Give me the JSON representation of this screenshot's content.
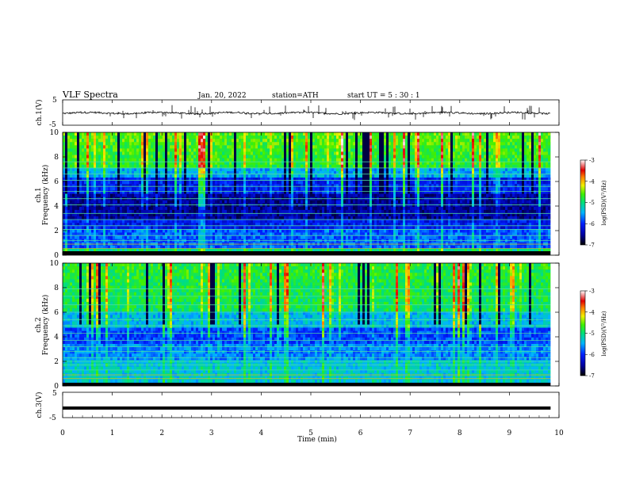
{
  "header": {
    "title": "VLF  Spectra",
    "date": "Jan. 20, 2022",
    "station": "station=ATH",
    "start": "start  UT  =    5  : 30 : 1"
  },
  "chart_data": [
    {
      "type": "line",
      "id": "ch1-waveform",
      "ylabel": "ch.1(V)",
      "ylim": [
        -5,
        5
      ],
      "yticks": [
        "5",
        "-5"
      ],
      "series_color": "#000000"
    },
    {
      "type": "heatmap",
      "id": "ch1-spectrogram",
      "ylabel": "Frequency  (kHz)",
      "ylabel_ch": "ch.1",
      "ylim": [
        0,
        10
      ],
      "yticks": [
        "0",
        "2",
        "4",
        "6",
        "8",
        "10"
      ],
      "colorbar": {
        "label": "log(PSD)(V²/Hz)",
        "range": [
          -7,
          -3
        ],
        "ticks": [
          "-3",
          "-4",
          "-5",
          "-6",
          "-7"
        ]
      }
    },
    {
      "type": "heatmap",
      "id": "ch2-spectrogram",
      "ylabel": "Frequency  (kHz)",
      "ylabel_ch": "ch.2",
      "ylim": [
        0,
        10
      ],
      "yticks": [
        "0",
        "2",
        "4",
        "6",
        "8",
        "10"
      ],
      "colorbar": {
        "label": "log(PSD)(V²/Hz)",
        "range": [
          -7,
          -3
        ],
        "ticks": [
          "-3",
          "-4",
          "-5",
          "-6",
          "-7"
        ]
      }
    },
    {
      "type": "line",
      "id": "ch3-waveform",
      "ylabel": "ch.3(V)",
      "ylim": [
        -5,
        5
      ],
      "yticks": [
        "5",
        "-5"
      ],
      "series_color": "#000000"
    }
  ],
  "xaxis": {
    "label": "Time  (min)",
    "xlim": [
      0,
      10
    ],
    "ticks": [
      "0",
      "1",
      "2",
      "3",
      "4",
      "5",
      "6",
      "7",
      "8",
      "9",
      "10"
    ],
    "data_end": 9.83
  }
}
